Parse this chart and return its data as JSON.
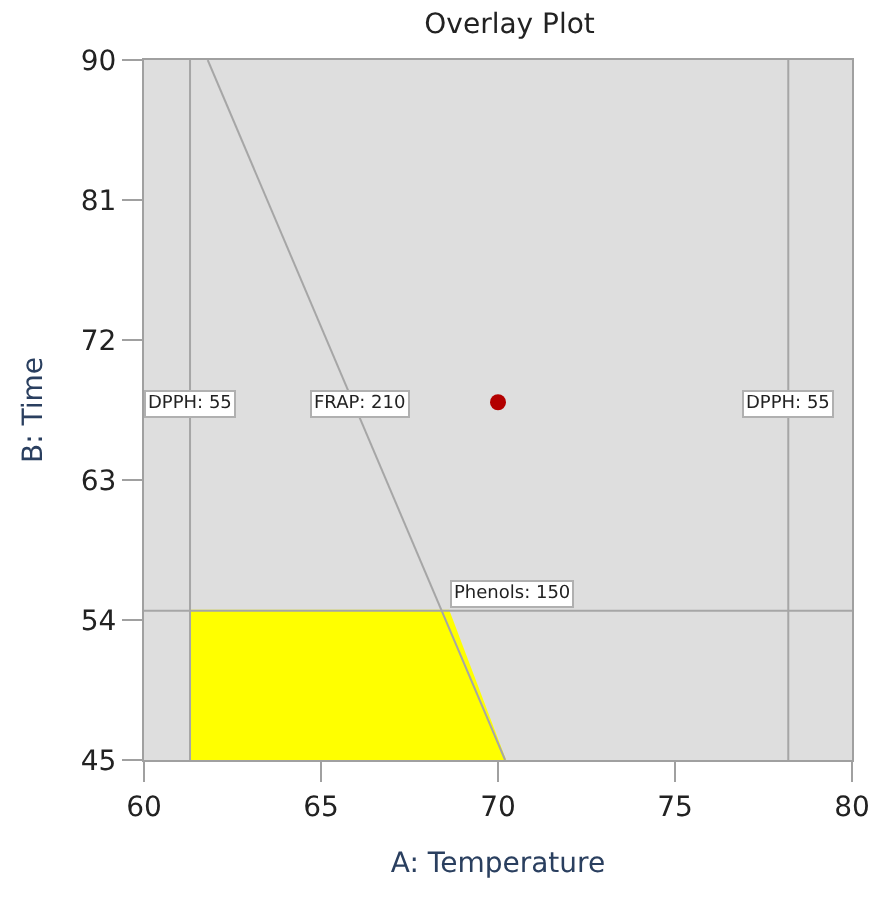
{
  "chart_data": {
    "type": "line",
    "title": "Overlay Plot",
    "xlabel": "A: Temperature",
    "ylabel": "B: Time",
    "xlim": [
      60,
      80
    ],
    "xticks": [
      60,
      65,
      70,
      75,
      80
    ],
    "ylim": [
      45,
      90
    ],
    "yticks": [
      45,
      54,
      63,
      72,
      81,
      90
    ],
    "grid": false,
    "series": [
      {
        "type": "area",
        "color": "#ffff00",
        "x": [
          61.3,
          68.6,
          70.2
        ],
        "values": [
          54.6,
          54.6,
          45
        ]
      },
      {
        "color": "#a6a6a6",
        "x": [
          61.3,
          61.3
        ],
        "values": [
          45,
          90
        ]
      },
      {
        "color": "#a6a6a6",
        "x": [
          78.2,
          78.2
        ],
        "values": [
          45,
          90
        ]
      },
      {
        "color": "#a6a6a6",
        "x": [
          61.8,
          70.2
        ],
        "values": [
          90,
          45
        ]
      },
      {
        "color": "#a6a6a6",
        "x": [
          60,
          80
        ],
        "values": [
          54.6,
          54.6
        ]
      },
      {
        "type": "scatter",
        "marker": "circle",
        "color": "#b30000",
        "x": [
          70
        ],
        "values": [
          68
        ]
      }
    ],
    "annotations": [
      {
        "text": "DPPH: 55",
        "x": 61.3,
        "y": 66.9
      },
      {
        "text": "FRAP: 210",
        "x": 66.1,
        "y": 66.9
      },
      {
        "text": "Phenols: 150",
        "x": 70.4,
        "y": 54.6
      },
      {
        "text": "DPPH: 55",
        "x": 78.2,
        "y": 66.9
      }
    ]
  }
}
